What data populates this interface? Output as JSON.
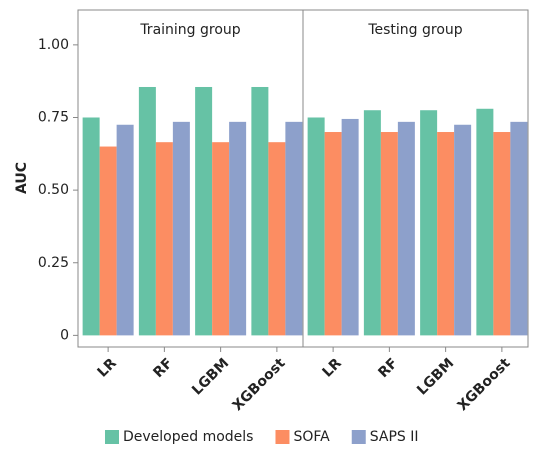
{
  "chart_data": {
    "type": "bar",
    "ylabel": "AUC",
    "facets": [
      "Training group",
      "Testing group"
    ],
    "categories": [
      "LR",
      "RF",
      "LGBM",
      "XGBoost",
      "LR",
      "RF",
      "LGBM",
      "XGBoost"
    ],
    "series": [
      {
        "name": "Developed models",
        "color": "#66c2a5",
        "values": [
          0.75,
          0.855,
          0.855,
          0.855,
          0.75,
          0.775,
          0.775,
          0.78
        ]
      },
      {
        "name": "SOFA",
        "color": "#fc8d62",
        "values": [
          0.65,
          0.665,
          0.665,
          0.665,
          0.7,
          0.7,
          0.7,
          0.7
        ]
      },
      {
        "name": "SAPS II",
        "color": "#8da0cb",
        "values": [
          0.725,
          0.735,
          0.735,
          0.735,
          0.745,
          0.735,
          0.725,
          0.735
        ]
      }
    ],
    "ylim": [
      -0.04,
      1.12
    ],
    "yticks": [
      0,
      {
        "value": 0.25,
        "label": "0.25"
      },
      {
        "value": 0.5,
        "label": "0.50"
      },
      {
        "value": 0.75,
        "label": "0.75"
      },
      {
        "value": 1.0,
        "label": "1.00"
      }
    ],
    "legend": "bottom"
  }
}
